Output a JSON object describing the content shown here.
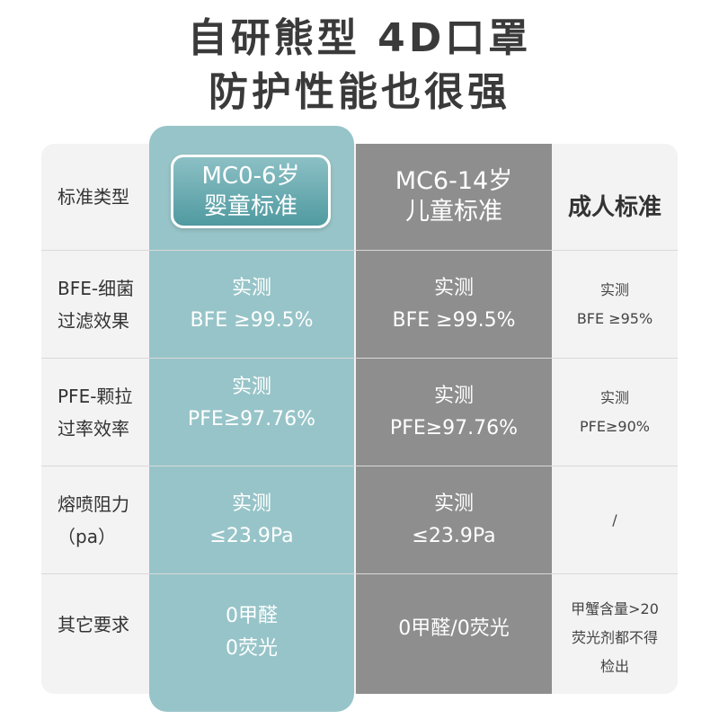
{
  "header": {
    "title_line1": "自研熊型 4D口罩",
    "title_line2": "防护性能也很强"
  },
  "columns": {
    "infant": {
      "line1": "MC0-6岁",
      "line2": "婴童标准"
    },
    "child": {
      "line1": "MC6-14岁",
      "line2": "儿童标准"
    },
    "adult": {
      "label": "成人标准"
    }
  },
  "rows": [
    {
      "label": [
        "标准类型"
      ]
    },
    {
      "label": [
        "BFE-细菌",
        "过滤效果"
      ],
      "infant": [
        "实测",
        "BFE ≥99.5%"
      ],
      "child": [
        "实测",
        "BFE ≥99.5%"
      ],
      "adult": [
        "实测",
        "BFE ≥95%"
      ]
    },
    {
      "label": [
        "PFE-颗拉",
        "过率效率"
      ],
      "infant": [
        "实测",
        "PFE≥97.76%"
      ],
      "child": [
        "实测",
        "PFE≥97.76%"
      ],
      "adult": [
        "实测",
        "PFE≥90%"
      ]
    },
    {
      "label": [
        "熔喷阻力",
        "（pa）"
      ],
      "infant": [
        "实测",
        "≤23.9Pa"
      ],
      "child": [
        "实测",
        "≤23.9Pa"
      ],
      "adult": [
        "/"
      ]
    },
    {
      "label": [
        "其它要求"
      ],
      "infant": [
        "0甲醛",
        "0荧光"
      ],
      "child": [
        "0甲醛/0荧光"
      ],
      "adult": [
        "甲蟹含量>20",
        "荧光剂都不得",
        "检出"
      ]
    }
  ],
  "colors": {
    "infant_column": "#97c4c8",
    "child_column": "#8e8e8e",
    "table_background": "#f3f3f3"
  }
}
